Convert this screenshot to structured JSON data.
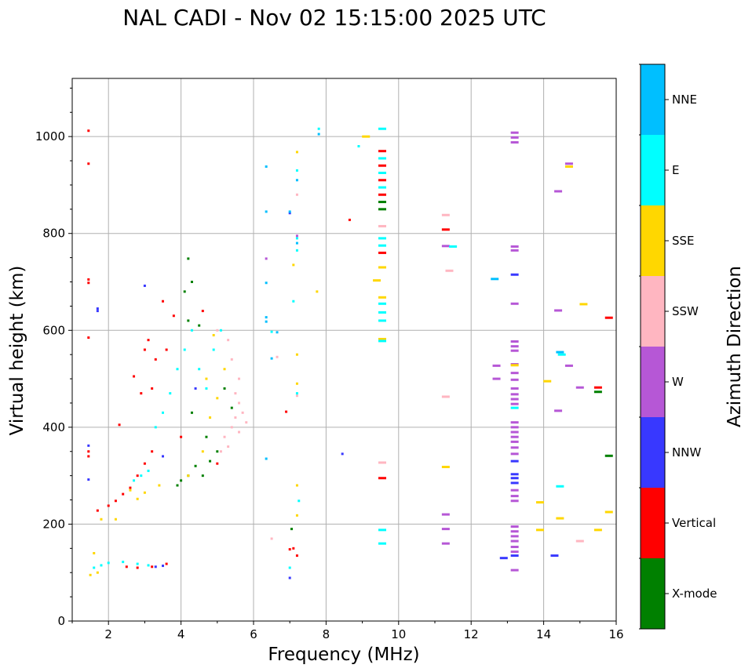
{
  "chart_data": {
    "type": "scatter",
    "title": "NAL CADI - Nov 02 15:15:00 2025 UTC",
    "xlabel": "Frequency (MHz)",
    "ylabel": "Virtual height (km)",
    "xlim": [
      1,
      16
    ],
    "ylim": [
      0,
      1120
    ],
    "x_ticks": [
      2,
      4,
      6,
      8,
      10,
      12,
      14,
      16
    ],
    "x_tick_labels": [
      "2",
      "4",
      "6",
      "8",
      "10",
      "12",
      "14",
      "16"
    ],
    "y_ticks": [
      0,
      200,
      400,
      600,
      800,
      1000
    ],
    "y_tick_labels": [
      "0",
      "200",
      "400",
      "600",
      "800",
      "1000"
    ],
    "grid": true,
    "colorbar": {
      "label": "Azimuth Direction",
      "categories": [
        "X-mode",
        "Vertical",
        "NNW",
        "W",
        "SSW",
        "SSE",
        "E",
        "NNE"
      ],
      "colors": {
        "X-mode": "#008000",
        "Vertical": "#ff0000",
        "NNW": "#3838ff",
        "W": "#b657d6",
        "SSW": "#ffb6c1",
        "SSE": "#ffd700",
        "E": "#00ffff",
        "NNE": "#00bfff"
      }
    },
    "series": [
      {
        "name": "Vertical",
        "points": [
          [
            1.45,
            1012
          ],
          [
            1.45,
            944
          ],
          [
            1.45,
            705
          ],
          [
            1.45,
            698
          ],
          [
            1.45,
            585
          ],
          [
            1.45,
            350
          ],
          [
            1.45,
            340
          ],
          [
            1.7,
            228
          ],
          [
            2.0,
            238
          ],
          [
            2.2,
            248
          ],
          [
            2.4,
            262
          ],
          [
            2.6,
            275
          ],
          [
            2.8,
            300
          ],
          [
            3.0,
            325
          ],
          [
            3.2,
            350
          ],
          [
            3.0,
            560
          ],
          [
            3.1,
            580
          ],
          [
            3.3,
            540
          ],
          [
            3.5,
            660
          ],
          [
            2.7,
            505
          ],
          [
            2.9,
            470
          ],
          [
            3.2,
            480
          ],
          [
            3.6,
            560
          ],
          [
            3.8,
            630
          ],
          [
            4.0,
            380
          ],
          [
            2.3,
            405
          ],
          [
            2.5,
            112
          ],
          [
            2.8,
            110
          ],
          [
            3.2,
            112
          ],
          [
            3.6,
            118
          ],
          [
            5.0,
            325
          ],
          [
            4.6,
            640
          ],
          [
            6.9,
            432
          ],
          [
            7.0,
            148
          ],
          [
            7.1,
            150
          ],
          [
            7.2,
            135
          ],
          [
            8.65,
            828
          ],
          [
            9.55,
            970
          ],
          [
            9.55,
            940
          ],
          [
            9.55,
            910
          ],
          [
            9.55,
            880
          ],
          [
            9.55,
            760
          ],
          [
            9.55,
            295
          ],
          [
            11.3,
            808
          ],
          [
            15.5,
            482
          ],
          [
            15.8,
            626
          ]
        ]
      },
      {
        "name": "X-mode",
        "points": [
          [
            3.9,
            280
          ],
          [
            4.0,
            290
          ],
          [
            4.2,
            300
          ],
          [
            4.4,
            320
          ],
          [
            4.6,
            300
          ],
          [
            4.8,
            330
          ],
          [
            5.0,
            350
          ],
          [
            4.1,
            680
          ],
          [
            4.2,
            620
          ],
          [
            4.2,
            748
          ],
          [
            4.3,
            700
          ],
          [
            4.5,
            610
          ],
          [
            4.3,
            430
          ],
          [
            4.7,
            380
          ],
          [
            5.2,
            480
          ],
          [
            5.4,
            440
          ],
          [
            7.05,
            190
          ],
          [
            9.55,
            850
          ],
          [
            9.55,
            865
          ],
          [
            15.5,
            473
          ],
          [
            15.8,
            341
          ]
        ]
      },
      {
        "name": "NNW",
        "points": [
          [
            1.45,
            362
          ],
          [
            1.45,
            292
          ],
          [
            1.7,
            640
          ],
          [
            1.7,
            645
          ],
          [
            3.0,
            692
          ],
          [
            3.3,
            112
          ],
          [
            3.5,
            114
          ],
          [
            7.0,
            842
          ],
          [
            7.0,
            89
          ],
          [
            8.45,
            345
          ],
          [
            13.2,
            715
          ],
          [
            13.2,
            330
          ],
          [
            13.2,
            303
          ],
          [
            13.2,
            295
          ],
          [
            13.2,
            285
          ],
          [
            12.9,
            130
          ],
          [
            13.2,
            135
          ],
          [
            14.3,
            135
          ],
          [
            3.5,
            340
          ],
          [
            4.4,
            480
          ]
        ]
      },
      {
        "name": "W",
        "points": [
          [
            6.35,
            748
          ],
          [
            7.2,
            795
          ],
          [
            12.7,
            527
          ],
          [
            12.7,
            500
          ],
          [
            13.2,
            1008
          ],
          [
            13.2,
            998
          ],
          [
            13.2,
            988
          ],
          [
            13.2,
            773
          ],
          [
            13.2,
            765
          ],
          [
            13.2,
            655
          ],
          [
            13.2,
            577
          ],
          [
            13.2,
            567
          ],
          [
            13.2,
            558
          ],
          [
            13.2,
            530
          ],
          [
            13.2,
            512
          ],
          [
            13.2,
            498
          ],
          [
            13.2,
            480
          ],
          [
            13.2,
            468
          ],
          [
            13.2,
            458
          ],
          [
            13.2,
            448
          ],
          [
            13.2,
            410
          ],
          [
            13.2,
            400
          ],
          [
            13.2,
            390
          ],
          [
            13.2,
            380
          ],
          [
            13.2,
            370
          ],
          [
            13.2,
            358
          ],
          [
            13.2,
            345
          ],
          [
            13.2,
            270
          ],
          [
            13.2,
            258
          ],
          [
            13.2,
            248
          ],
          [
            13.2,
            195
          ],
          [
            13.2,
            185
          ],
          [
            13.2,
            175
          ],
          [
            13.2,
            165
          ],
          [
            13.2,
            153
          ],
          [
            13.2,
            143
          ],
          [
            13.2,
            105
          ],
          [
            14.4,
            887
          ],
          [
            14.4,
            641
          ],
          [
            14.4,
            434
          ],
          [
            14.7,
            944
          ],
          [
            14.7,
            527
          ],
          [
            15.0,
            482
          ],
          [
            11.3,
            774
          ],
          [
            11.3,
            220
          ],
          [
            11.3,
            190
          ],
          [
            11.3,
            160
          ]
        ]
      },
      {
        "name": "SSW",
        "points": [
          [
            5.2,
            380
          ],
          [
            5.4,
            400
          ],
          [
            5.5,
            420
          ],
          [
            5.6,
            450
          ],
          [
            5.3,
            360
          ],
          [
            5.1,
            350
          ],
          [
            5.5,
            470
          ],
          [
            5.6,
            500
          ],
          [
            5.4,
            540
          ],
          [
            5.3,
            580
          ],
          [
            5.7,
            430
          ],
          [
            5.8,
            410
          ],
          [
            5.6,
            390
          ],
          [
            5.0,
            600
          ],
          [
            6.5,
            170
          ],
          [
            6.65,
            545
          ],
          [
            7.2,
            880
          ],
          [
            7.2,
            465
          ],
          [
            9.55,
            815
          ],
          [
            9.55,
            327
          ],
          [
            11.3,
            838
          ],
          [
            11.3,
            463
          ],
          [
            11.4,
            723
          ],
          [
            15.0,
            165
          ]
        ]
      },
      {
        "name": "SSE",
        "points": [
          [
            1.5,
            95
          ],
          [
            1.6,
            140
          ],
          [
            1.7,
            100
          ],
          [
            1.8,
            210
          ],
          [
            2.2,
            210
          ],
          [
            2.6,
            270
          ],
          [
            2.8,
            252
          ],
          [
            3.0,
            265
          ],
          [
            3.4,
            280
          ],
          [
            4.2,
            300
          ],
          [
            4.6,
            350
          ],
          [
            4.8,
            420
          ],
          [
            5.0,
            460
          ],
          [
            4.9,
            590
          ],
          [
            5.2,
            520
          ],
          [
            4.7,
            500
          ],
          [
            7.2,
            968
          ],
          [
            7.1,
            735
          ],
          [
            7.2,
            550
          ],
          [
            7.2,
            490
          ],
          [
            7.2,
            280
          ],
          [
            7.2,
            218
          ],
          [
            7.75,
            680
          ],
          [
            9.1,
            1000
          ],
          [
            9.4,
            703
          ],
          [
            9.55,
            668
          ],
          [
            9.55,
            730
          ],
          [
            9.55,
            582
          ],
          [
            11.3,
            318
          ],
          [
            13.2,
            528
          ],
          [
            13.9,
            245
          ],
          [
            13.9,
            188
          ],
          [
            14.1,
            495
          ],
          [
            14.45,
            212
          ],
          [
            14.7,
            938
          ],
          [
            15.1,
            654
          ],
          [
            15.5,
            188
          ],
          [
            15.8,
            225
          ]
        ]
      },
      {
        "name": "E",
        "points": [
          [
            1.6,
            110
          ],
          [
            1.8,
            115
          ],
          [
            2.0,
            120
          ],
          [
            2.4,
            122
          ],
          [
            2.8,
            118
          ],
          [
            3.1,
            115
          ],
          [
            2.7,
            290
          ],
          [
            2.9,
            300
          ],
          [
            3.1,
            310
          ],
          [
            3.3,
            400
          ],
          [
            3.5,
            430
          ],
          [
            3.7,
            470
          ],
          [
            3.9,
            520
          ],
          [
            4.1,
            560
          ],
          [
            4.3,
            600
          ],
          [
            4.5,
            520
          ],
          [
            4.7,
            480
          ],
          [
            4.9,
            560
          ],
          [
            5.1,
            600
          ],
          [
            7.0,
            110
          ],
          [
            7.1,
            660
          ],
          [
            7.2,
            930
          ],
          [
            7.2,
            790
          ],
          [
            7.2,
            470
          ],
          [
            7.25,
            248
          ],
          [
            7.2,
            765
          ],
          [
            7.8,
            1016
          ],
          [
            8.9,
            980
          ],
          [
            9.55,
            1016
          ],
          [
            9.55,
            955
          ],
          [
            9.55,
            925
          ],
          [
            9.55,
            895
          ],
          [
            9.55,
            790
          ],
          [
            9.55,
            775
          ],
          [
            9.55,
            655
          ],
          [
            9.55,
            637
          ],
          [
            9.55,
            620
          ],
          [
            9.55,
            578
          ],
          [
            9.55,
            188
          ],
          [
            9.55,
            160
          ],
          [
            11.5,
            773
          ],
          [
            13.2,
            440
          ],
          [
            14.45,
            278
          ],
          [
            14.5,
            550
          ],
          [
            6.5,
            597
          ]
        ]
      },
      {
        "name": "NNE",
        "points": [
          [
            6.35,
            938
          ],
          [
            6.35,
            845
          ],
          [
            6.35,
            698
          ],
          [
            6.35,
            627
          ],
          [
            6.35,
            618
          ],
          [
            6.35,
            335
          ],
          [
            6.5,
            542
          ],
          [
            6.65,
            596
          ],
          [
            7.0,
            845
          ],
          [
            7.2,
            910
          ],
          [
            7.2,
            780
          ],
          [
            7.8,
            1005
          ],
          [
            12.65,
            706
          ],
          [
            14.45,
            555
          ]
        ]
      }
    ]
  }
}
